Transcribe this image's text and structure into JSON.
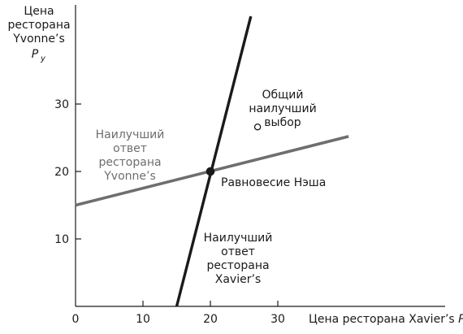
{
  "chart_data": {
    "type": "line",
    "title": "",
    "xlabel": "Цена ресторана Xavier’s",
    "xlabel_symbol": "P",
    "xlabel_subscript": "x",
    "ylabel_lines": [
      "Цена",
      "ресторана",
      "Yvonne’s"
    ],
    "ylabel_symbol": "P",
    "ylabel_subscript": "y",
    "xlim": [
      0,
      41
    ],
    "ylim": [
      0,
      44
    ],
    "xticks": [
      0,
      10,
      20,
      30
    ],
    "yticks": [
      10,
      20,
      30
    ],
    "grid": false,
    "series": [
      {
        "name": "Наилучший ответ ресторана Yvonne’s",
        "color": "#6e6e6e",
        "points": [
          [
            0,
            15
          ],
          [
            40.5,
            25.2
          ]
        ]
      },
      {
        "name": "Наилучший ответ ресторана Xavier’s",
        "color": "#1a1a1a",
        "points": [
          [
            15,
            0
          ],
          [
            26,
            43
          ]
        ]
      }
    ],
    "points": [
      {
        "name": "Равновесие Нэша",
        "x": 20,
        "y": 20,
        "style": "filled",
        "color": "#1a1a1a"
      },
      {
        "name": "Общий наилучший выбор",
        "x": 27,
        "y": 26.6,
        "style": "open",
        "color": "#1a1a1a"
      }
    ],
    "annotations": [
      {
        "id": "yvonne-label",
        "lines": [
          "Наилучший",
          "ответ",
          "ресторана",
          "Yvonne’s"
        ],
        "color": "#6e6e6e"
      },
      {
        "id": "nash-label",
        "lines": [
          "Равновесие Нэша"
        ],
        "color": "#1a1a1a"
      },
      {
        "id": "best-label",
        "lines": [
          "Общий",
          "наилучший",
          "выбор"
        ],
        "color": "#1a1a1a"
      },
      {
        "id": "xavier-label",
        "lines": [
          "Наилучший",
          "ответ",
          "ресторана",
          "Xavier’s"
        ],
        "color": "#1a1a1a"
      }
    ]
  }
}
